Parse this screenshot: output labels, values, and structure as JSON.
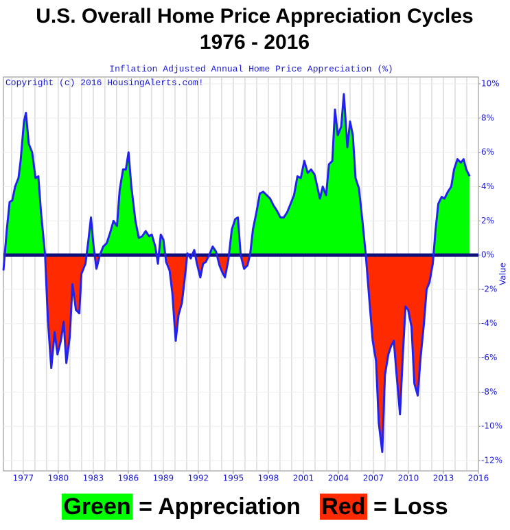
{
  "chart_data": {
    "type": "area",
    "title": "U.S. Overall Home Price Appreciation Cycles",
    "subtitle": "1976 - 2016",
    "chart_caption": "Inflation Adjusted Annual Home Price Appreciation (%)",
    "copyright": "Copyright (c) 2016 HousingAlerts.com!",
    "y_axis_label": "Value",
    "x": [
      1975.3,
      1975.59,
      1975.83,
      1976.06,
      1976.3,
      1976.59,
      1976.77,
      1977.06,
      1977.23,
      1977.47,
      1977.76,
      1978.05,
      1978.29,
      1978.52,
      1978.87,
      1979.11,
      1979.4,
      1979.69,
      1979.93,
      1980.22,
      1980.46,
      1980.69,
      1980.98,
      1981.22,
      1981.51,
      1981.8,
      1981.98,
      1982.33,
      1982.57,
      1982.8,
      1983.03,
      1983.27,
      1983.56,
      1983.85,
      1984.15,
      1984.44,
      1984.73,
      1985.03,
      1985.26,
      1985.55,
      1985.79,
      1986.02,
      1986.26,
      1986.61,
      1986.9,
      1987.19,
      1987.49,
      1987.78,
      1988.01,
      1988.31,
      1988.54,
      1988.78,
      1989.01,
      1989.24,
      1989.54,
      1989.77,
      1990.06,
      1990.3,
      1990.59,
      1990.83,
      1991.06,
      1991.35,
      1991.65,
      1991.88,
      1992.17,
      1992.41,
      1992.64,
      1992.93,
      1993.23,
      1993.52,
      1993.81,
      1994.05,
      1994.28,
      1994.57,
      1994.87,
      1995.16,
      1995.39,
      1995.63,
      1995.92,
      1996.21,
      1996.45,
      1996.68,
      1996.98,
      1997.27,
      1997.56,
      1997.86,
      1998.15,
      1998.44,
      1998.73,
      1999.03,
      1999.32,
      1999.61,
      1999.91,
      2000.2,
      2000.49,
      2000.78,
      2001.08,
      2001.37,
      2001.66,
      2001.96,
      2002.19,
      2002.42,
      2002.66,
      2002.95,
      2003.19,
      2003.48,
      2003.71,
      2003.95,
      2004.24,
      2004.47,
      2004.77,
      2005.0,
      2005.24,
      2005.47,
      2005.76,
      2006.06,
      2006.35,
      2006.64,
      2006.94,
      2007.23,
      2007.46,
      2007.76,
      2007.99,
      2008.28,
      2008.52,
      2008.75,
      2008.99,
      2009.28,
      2009.51,
      2009.75,
      2009.98,
      2010.27,
      2010.51,
      2010.8,
      2011.04,
      2011.33,
      2011.56,
      2011.8,
      2012.09,
      2012.33,
      2012.56,
      2012.85,
      2013.09,
      2013.38,
      2013.67,
      2013.91,
      2014.2,
      2014.49,
      2014.73,
      2014.96,
      2015.25
    ],
    "values": [
      -0.9,
      1.5,
      3.1,
      3.2,
      4.0,
      4.5,
      5.5,
      7.8,
      8.3,
      6.5,
      6.0,
      4.5,
      4.6,
      2.5,
      0,
      -3.8,
      -6.6,
      -4.5,
      -5.8,
      -5.0,
      -3.9,
      -6.3,
      -4.8,
      -1.7,
      -3.2,
      -3.4,
      -1.1,
      -0.5,
      0.8,
      2.2,
      0.5,
      -0.8,
      0,
      0.5,
      0.7,
      1.3,
      2.0,
      1.7,
      3.8,
      5.0,
      5.0,
      6.0,
      4.0,
      2.0,
      1.0,
      1.1,
      1.4,
      1.1,
      1.2,
      0.5,
      -0.5,
      1.2,
      0.9,
      -0.4,
      -0.9,
      -2.2,
      -5.0,
      -3.5,
      -2.8,
      -1.4,
      0.1,
      -0.2,
      0.3,
      -0.5,
      -1.3,
      -0.5,
      -0.4,
      0.0,
      0.5,
      0.2,
      -0.6,
      -1.0,
      -1.3,
      -0.3,
      1.5,
      2.1,
      2.2,
      0,
      -0.8,
      -0.6,
      0.1,
      1.5,
      2.5,
      3.6,
      3.7,
      3.5,
      3.3,
      2.9,
      2.6,
      2.2,
      2.2,
      2.5,
      3.0,
      3.5,
      4.6,
      4.5,
      5.5,
      4.8,
      5.0,
      4.7,
      4.0,
      3.3,
      4.0,
      3.5,
      5.3,
      5.5,
      8.5,
      7.0,
      7.5,
      9.4,
      6.3,
      7.8,
      7.0,
      4.5,
      3.9,
      2.0,
      0,
      -2.5,
      -5.0,
      -6.2,
      -9.8,
      -11.5,
      -7.0,
      -5.8,
      -5.3,
      -5.0,
      -7.0,
      -9.3,
      -6.0,
      -3.0,
      -3.2,
      -4.2,
      -7.5,
      -8.2,
      -6.0,
      -4.0,
      -2.0,
      -1.6,
      -0.5,
      1.5,
      3.0,
      3.4,
      3.3,
      3.7,
      4.0,
      5.0,
      5.6,
      5.4,
      5.6,
      5.0,
      4.6
    ],
    "line_color": "#2222ee",
    "zero_line_color": "#10107a",
    "above_color": "#00ff00",
    "below_color": "#ff2a00",
    "xlim": [
      1975.3,
      2016
    ],
    "ylim": [
      -12.6,
      10.4
    ],
    "xticks": [
      1977,
      1980,
      1983,
      1986,
      1989,
      1992,
      1995,
      1998,
      2001,
      2004,
      2007,
      2010,
      2013,
      2016
    ],
    "minor_xticks": [
      1976,
      1977,
      1978,
      1979,
      1980,
      1981,
      1982,
      1983,
      1984,
      1985,
      1986,
      1987,
      1988,
      1989,
      1990,
      1991,
      1992,
      1993,
      1994,
      1995,
      1996,
      1997,
      1998,
      1999,
      2000,
      2001,
      2002,
      2003,
      2004,
      2005,
      2006,
      2007,
      2008,
      2009,
      2010,
      2011,
      2012,
      2013,
      2014,
      2015
    ],
    "yticks": [
      {
        "value": 10,
        "label": "10%"
      },
      {
        "value": 8,
        "label": "8%"
      },
      {
        "value": 6,
        "label": "6%"
      },
      {
        "value": 4,
        "label": "4%"
      },
      {
        "value": 2,
        "label": "2%"
      },
      {
        "value": 0,
        "label": "0%"
      },
      {
        "value": -2,
        "label": "-2%"
      },
      {
        "value": -4,
        "label": "-4%"
      },
      {
        "value": -6,
        "label": "-6%"
      },
      {
        "value": -8,
        "label": "-8%"
      },
      {
        "value": -10,
        "label": "-10%"
      },
      {
        "value": -12,
        "label": "-12%"
      }
    ],
    "grid": true,
    "key": {
      "above_label": "Green",
      "above_text": "= Appreciation",
      "below_label": "Red",
      "below_text": "= Loss"
    }
  }
}
